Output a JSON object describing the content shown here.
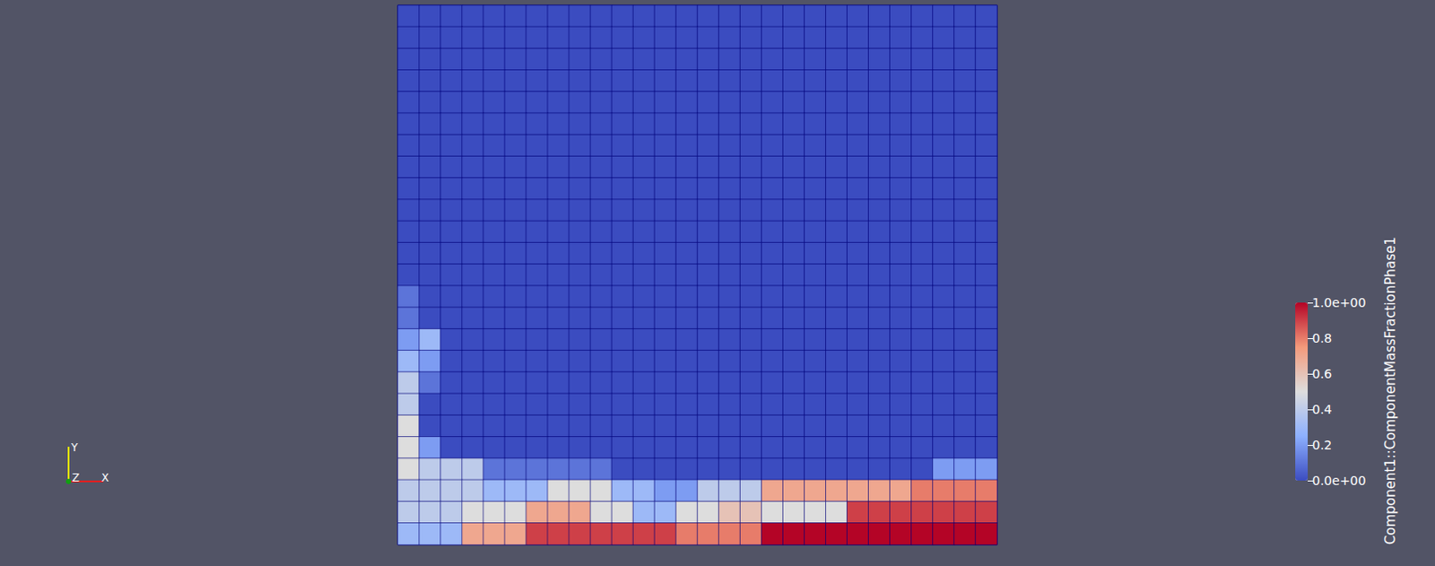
{
  "chart_data": {
    "type": "heatmap",
    "title": "Component1::ComponentMassFractionPhase1",
    "tick_labels": false,
    "orientation_axes": {
      "x": "X",
      "y": "Y",
      "z": "Z"
    },
    "colorbar": {
      "range": [
        0,
        1
      ],
      "ticks": [
        {
          "value": 0,
          "label": "0.0e+00"
        },
        0.2,
        0.4,
        0.6,
        0.8,
        {
          "value": 1,
          "label": "1.0e+00"
        }
      ]
    },
    "cells": [
      [
        0,
        0,
        0,
        0,
        0,
        0,
        0,
        0,
        0,
        0,
        0,
        0,
        0,
        0,
        0,
        0,
        0,
        0,
        0,
        0,
        0,
        0,
        0,
        0,
        0,
        0,
        0,
        0
      ],
      [
        0,
        0,
        0,
        0,
        0,
        0,
        0,
        0,
        0,
        0,
        0,
        0,
        0,
        0,
        0,
        0,
        0,
        0,
        0,
        0,
        0,
        0,
        0,
        0,
        0,
        0,
        0,
        0
      ],
      [
        0,
        0,
        0,
        0,
        0,
        0,
        0,
        0,
        0,
        0,
        0,
        0,
        0,
        0,
        0,
        0,
        0,
        0,
        0,
        0,
        0,
        0,
        0,
        0,
        0,
        0,
        0,
        0
      ],
      [
        0,
        0,
        0,
        0,
        0,
        0,
        0,
        0,
        0,
        0,
        0,
        0,
        0,
        0,
        0,
        0,
        0,
        0,
        0,
        0,
        0,
        0,
        0,
        0,
        0,
        0,
        0,
        0
      ],
      [
        0,
        0,
        0,
        0,
        0,
        0,
        0,
        0,
        0,
        0,
        0,
        0,
        0,
        0,
        0,
        0,
        0,
        0,
        0,
        0,
        0,
        0,
        0,
        0,
        0,
        0,
        0,
        0
      ],
      [
        0,
        0,
        0,
        0,
        0,
        0,
        0,
        0,
        0,
        0,
        0,
        0,
        0,
        0,
        0,
        0,
        0,
        0,
        0,
        0,
        0,
        0,
        0,
        0,
        0,
        0,
        0,
        0
      ],
      [
        0,
        0,
        0,
        0,
        0,
        0,
        0,
        0,
        0,
        0,
        0,
        0,
        0,
        0,
        0,
        0,
        0,
        0,
        0,
        0,
        0,
        0,
        0,
        0,
        0,
        0,
        0,
        0
      ],
      [
        0,
        0,
        0,
        0,
        0,
        0,
        0,
        0,
        0,
        0,
        0,
        0,
        0,
        0,
        0,
        0,
        0,
        0,
        0,
        0,
        0,
        0,
        0,
        0,
        0,
        0,
        0,
        0
      ],
      [
        0,
        0,
        0,
        0,
        0,
        0,
        0,
        0,
        0,
        0,
        0,
        0,
        0,
        0,
        0,
        0,
        0,
        0,
        0,
        0,
        0,
        0,
        0,
        0,
        0,
        0,
        0,
        0
      ],
      [
        0,
        0,
        0,
        0,
        0,
        0,
        0,
        0,
        0,
        0,
        0,
        0,
        0,
        0,
        0,
        0,
        0,
        0,
        0,
        0,
        0,
        0,
        0,
        0,
        0,
        0,
        0,
        0
      ],
      [
        0,
        0,
        0,
        0,
        0,
        0,
        0,
        0,
        0,
        0,
        0,
        0,
        0,
        0,
        0,
        0,
        0,
        0,
        0,
        0,
        0,
        0,
        0,
        0,
        0,
        0,
        0,
        0
      ],
      [
        0,
        0,
        0,
        0,
        0,
        0,
        0,
        0,
        0,
        0,
        0,
        0,
        0,
        0,
        0,
        0,
        0,
        0,
        0,
        0,
        0,
        0,
        0,
        0,
        0,
        0,
        0,
        0
      ],
      [
        0,
        0,
        0,
        0,
        0,
        0,
        0,
        0,
        0,
        0,
        0,
        0,
        0,
        0,
        0,
        0,
        0,
        0,
        0,
        0,
        0,
        0,
        0,
        0,
        0,
        0,
        0,
        0
      ],
      [
        0.1,
        0,
        0,
        0,
        0,
        0,
        0,
        0,
        0,
        0,
        0,
        0,
        0,
        0,
        0,
        0,
        0,
        0,
        0,
        0,
        0,
        0,
        0,
        0,
        0,
        0,
        0,
        0
      ],
      [
        0.1,
        0,
        0,
        0,
        0,
        0,
        0,
        0,
        0,
        0,
        0,
        0,
        0,
        0,
        0,
        0,
        0,
        0,
        0,
        0,
        0,
        0,
        0,
        0,
        0,
        0,
        0,
        0
      ],
      [
        0.2,
        0.3,
        0,
        0,
        0,
        0,
        0,
        0,
        0,
        0,
        0,
        0,
        0,
        0,
        0,
        0,
        0,
        0,
        0,
        0,
        0,
        0,
        0,
        0,
        0,
        0,
        0,
        0
      ],
      [
        0.3,
        0.2,
        0,
        0,
        0,
        0,
        0,
        0,
        0,
        0,
        0,
        0,
        0,
        0,
        0,
        0,
        0,
        0,
        0,
        0,
        0,
        0,
        0,
        0,
        0,
        0,
        0,
        0
      ],
      [
        0.4,
        0.1,
        0,
        0,
        0,
        0,
        0,
        0,
        0,
        0,
        0,
        0,
        0,
        0,
        0,
        0,
        0,
        0,
        0,
        0,
        0,
        0,
        0,
        0,
        0,
        0,
        0,
        0
      ],
      [
        0.4,
        0,
        0,
        0,
        0,
        0,
        0,
        0,
        0,
        0,
        0,
        0,
        0,
        0,
        0,
        0,
        0,
        0,
        0,
        0,
        0,
        0,
        0,
        0,
        0,
        0,
        0,
        0
      ],
      [
        0.5,
        0,
        0,
        0,
        0,
        0,
        0,
        0,
        0,
        0,
        0,
        0,
        0,
        0,
        0,
        0,
        0,
        0,
        0,
        0,
        0,
        0,
        0,
        0,
        0,
        0,
        0,
        0
      ],
      [
        0.5,
        0.2,
        0,
        0,
        0,
        0,
        0,
        0,
        0,
        0,
        0,
        0,
        0,
        0,
        0,
        0,
        0,
        0,
        0,
        0,
        0,
        0,
        0,
        0,
        0,
        0,
        0,
        0
      ],
      [
        0.5,
        0.4,
        0.4,
        0.4,
        0.1,
        0.1,
        0.1,
        0.1,
        0.1,
        0.1,
        0,
        0,
        0,
        0,
        0,
        0,
        0,
        0,
        0,
        0,
        0,
        0,
        0,
        0,
        0,
        0.2,
        0.2,
        0.2
      ],
      [
        0.4,
        0.4,
        0.4,
        0.4,
        0.3,
        0.3,
        0.3,
        0.5,
        0.5,
        0.5,
        0.3,
        0.3,
        0.2,
        0.2,
        0.4,
        0.4,
        0.4,
        0.7,
        0.7,
        0.7,
        0.7,
        0.7,
        0.7,
        0.7,
        0.8,
        0.8,
        0.8,
        0.8
      ],
      [
        0.4,
        0.4,
        0.4,
        0.5,
        0.5,
        0.5,
        0.7,
        0.7,
        0.7,
        0.5,
        0.5,
        0.3,
        0.3,
        0.5,
        0.5,
        0.6,
        0.6,
        0.5,
        0.5,
        0.5,
        0.5,
        0.9,
        0.9,
        0.9,
        0.9,
        0.9,
        0.9,
        0.9
      ],
      [
        0.3,
        0.3,
        0.3,
        0.7,
        0.7,
        0.7,
        0.9,
        0.9,
        0.9,
        0.9,
        0.9,
        0.9,
        0.9,
        0.8,
        0.8,
        0.8,
        0.8,
        1,
        1,
        1,
        1,
        1,
        1,
        1,
        1,
        1,
        1,
        1
      ]
    ]
  }
}
